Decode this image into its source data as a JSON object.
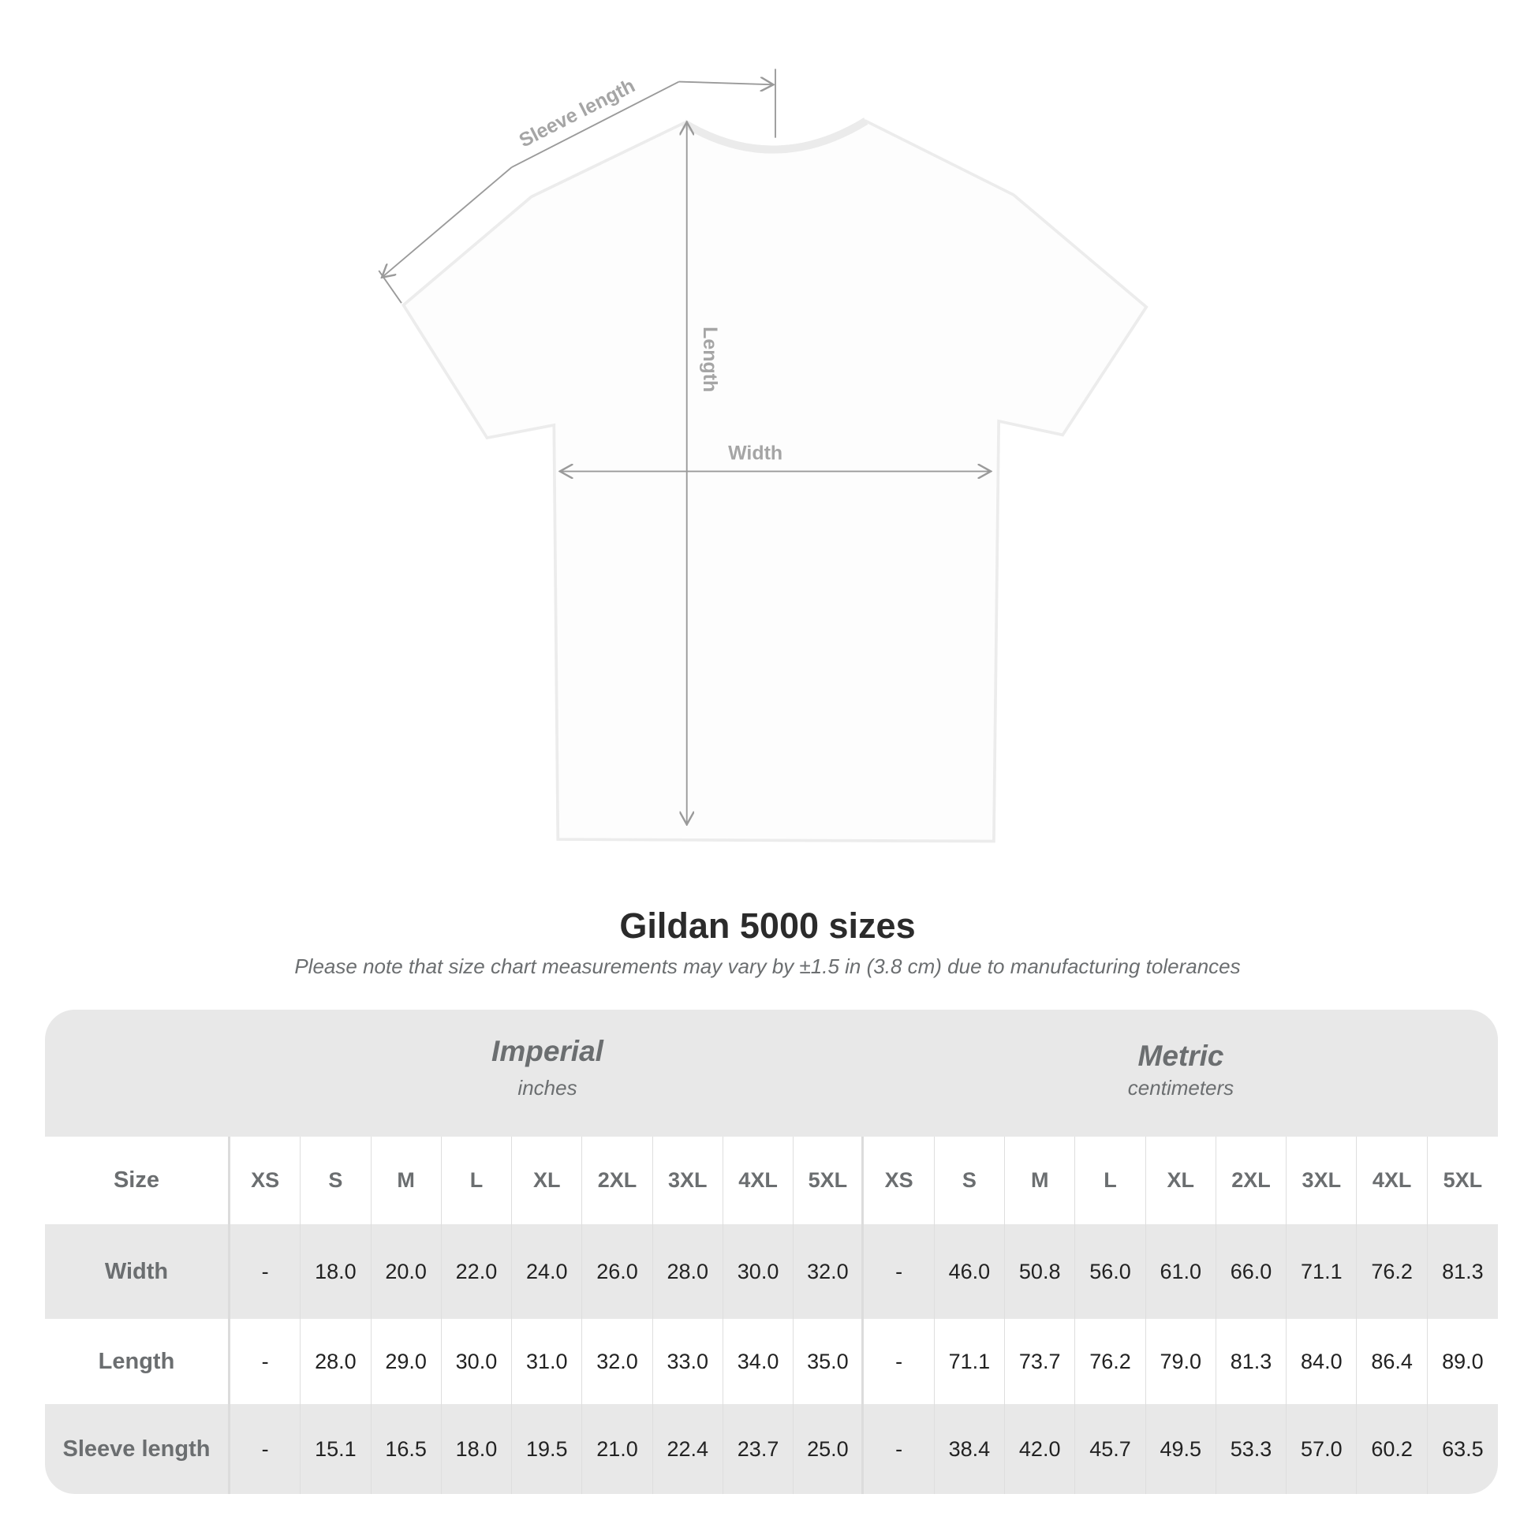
{
  "diagram": {
    "sleeve_label": "Sleeve length",
    "length_label": "Length",
    "width_label": "Width"
  },
  "title": "Gildan 5000 sizes",
  "note": "Please note that size chart measurements may vary by ±1.5 in (3.8 cm) due to manufacturing tolerances",
  "table": {
    "imperial": {
      "heading": "Imperial",
      "unit": "inches"
    },
    "metric": {
      "heading": "Metric",
      "unit": "centimeters"
    },
    "size_label": "Size",
    "sizes": [
      "XS",
      "S",
      "M",
      "L",
      "XL",
      "2XL",
      "3XL",
      "4XL",
      "5XL"
    ],
    "rows": [
      {
        "label": "Width",
        "imperial": [
          "-",
          "18.0",
          "20.0",
          "22.0",
          "24.0",
          "26.0",
          "28.0",
          "30.0",
          "32.0"
        ],
        "metric": [
          "-",
          "46.0",
          "50.8",
          "56.0",
          "61.0",
          "66.0",
          "71.1",
          "76.2",
          "81.3"
        ]
      },
      {
        "label": "Length",
        "imperial": [
          "-",
          "28.0",
          "29.0",
          "30.0",
          "31.0",
          "32.0",
          "33.0",
          "34.0",
          "35.0"
        ],
        "metric": [
          "-",
          "71.1",
          "73.7",
          "76.2",
          "79.0",
          "81.3",
          "84.0",
          "86.4",
          "89.0"
        ]
      },
      {
        "label": "Sleeve length",
        "imperial": [
          "-",
          "15.1",
          "16.5",
          "18.0",
          "19.5",
          "21.0",
          "22.4",
          "23.7",
          "25.0"
        ],
        "metric": [
          "-",
          "38.4",
          "42.0",
          "45.7",
          "49.5",
          "53.3",
          "57.0",
          "60.2",
          "63.5"
        ]
      }
    ]
  },
  "colors": {
    "band": "#e8e8e8",
    "label_text": "#6b6e70",
    "value_text": "#222222",
    "measure_line": "#9a9a9a"
  }
}
